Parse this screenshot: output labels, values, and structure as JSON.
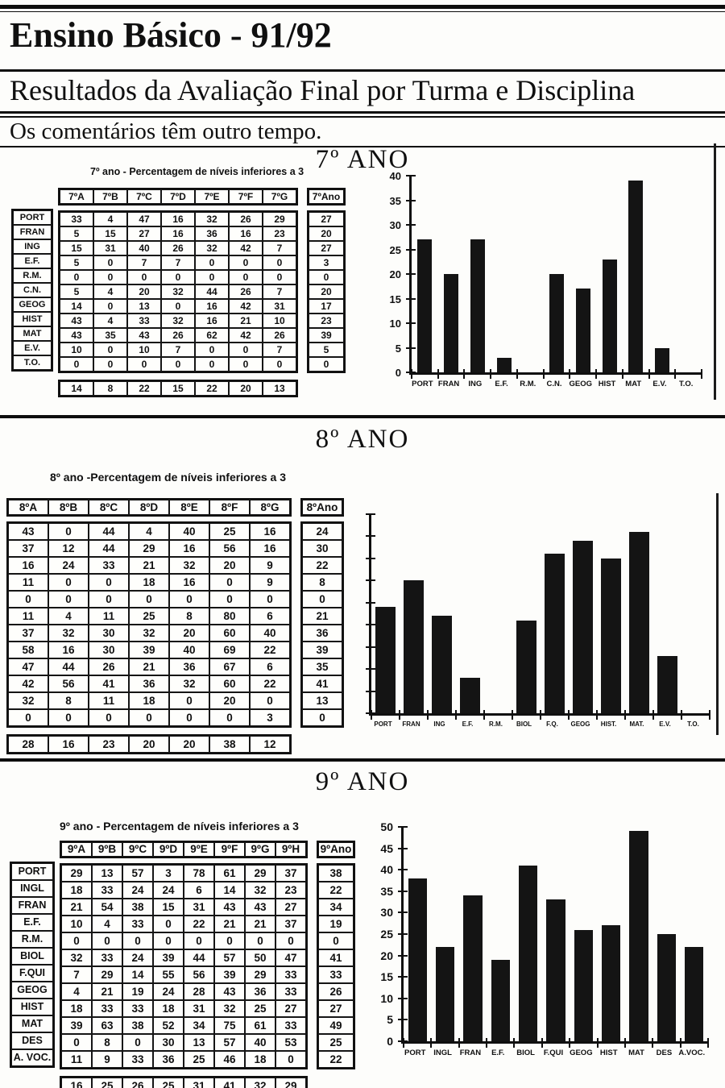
{
  "page": {
    "title": "Ensino Básico - 91/92",
    "subtitle": "Resultados da Avaliação Final por Turma e Disciplina",
    "note": "Os comentários têm outro tempo."
  },
  "sections": [
    {
      "heading": "7º ANO",
      "table_title": "7º ano - Percentagem de níveis inferiores a 3",
      "columns": [
        "7ºA",
        "7ºB",
        "7ºC",
        "7ºD",
        "7ºE",
        "7ºF",
        "7ºG"
      ],
      "avg_column": "7ºAno",
      "row_labels": [
        "PORT",
        "FRAN",
        "ING",
        "E.F.",
        "R.M.",
        "C.N.",
        "GEOG",
        "HIST",
        "MAT",
        "E.V.",
        "T.O."
      ],
      "rows": [
        [
          33,
          4,
          47,
          16,
          32,
          26,
          29
        ],
        [
          5,
          15,
          27,
          16,
          36,
          16,
          23
        ],
        [
          15,
          31,
          40,
          26,
          32,
          42,
          7
        ],
        [
          5,
          0,
          7,
          7,
          0,
          0,
          0
        ],
        [
          0,
          0,
          0,
          0,
          0,
          0,
          0
        ],
        [
          5,
          4,
          20,
          32,
          44,
          26,
          7
        ],
        [
          14,
          0,
          13,
          0,
          16,
          42,
          31
        ],
        [
          43,
          4,
          33,
          32,
          16,
          21,
          10
        ],
        [
          43,
          35,
          43,
          26,
          62,
          42,
          26
        ],
        [
          10,
          0,
          10,
          7,
          0,
          0,
          7
        ],
        [
          0,
          0,
          0,
          0,
          0,
          0,
          0
        ]
      ],
      "avg_values": [
        27,
        20,
        27,
        3,
        0,
        20,
        17,
        23,
        39,
        5,
        0
      ],
      "footer": [
        14,
        8,
        22,
        15,
        22,
        20,
        13
      ]
    },
    {
      "heading": "8º ANO",
      "table_title": "8º ano -Percentagem de níveis inferiores a 3",
      "columns": [
        "8ºA",
        "8ºB",
        "8ºC",
        "8ºD",
        "8ºE",
        "8ºF",
        "8ºG"
      ],
      "avg_column": "8ºAno",
      "row_labels": [],
      "rows": [
        [
          43,
          0,
          44,
          4,
          40,
          25,
          16
        ],
        [
          37,
          12,
          44,
          29,
          16,
          56,
          16
        ],
        [
          16,
          24,
          33,
          21,
          32,
          20,
          9
        ],
        [
          11,
          0,
          0,
          18,
          16,
          0,
          9
        ],
        [
          0,
          0,
          0,
          0,
          0,
          0,
          0
        ],
        [
          11,
          4,
          11,
          25,
          8,
          80,
          6
        ],
        [
          37,
          32,
          30,
          32,
          20,
          60,
          40
        ],
        [
          58,
          16,
          30,
          39,
          40,
          69,
          22
        ],
        [
          47,
          44,
          26,
          21,
          36,
          67,
          6
        ],
        [
          42,
          56,
          41,
          36,
          32,
          60,
          22
        ],
        [
          32,
          8,
          11,
          18,
          0,
          20,
          0
        ],
        [
          0,
          0,
          0,
          0,
          0,
          0,
          3
        ]
      ],
      "avg_values": [
        24,
        30,
        22,
        8,
        0,
        21,
        36,
        39,
        35,
        41,
        13,
        0
      ],
      "footer": [
        28,
        16,
        23,
        20,
        20,
        38,
        12
      ]
    },
    {
      "heading": "9º ANO",
      "table_title": "9º ano - Percentagem de níveis inferiores a 3",
      "columns": [
        "9ºA",
        "9ºB",
        "9ºC",
        "9ºD",
        "9ºE",
        "9ºF",
        "9ºG",
        "9ºH"
      ],
      "avg_column": "9ºAno",
      "row_labels": [
        "PORT",
        "INGL",
        "FRAN",
        "E.F.",
        "R.M.",
        "BIOL",
        "F.QUI",
        "GEOG",
        "HIST",
        "MAT",
        "DES",
        "A. VOC."
      ],
      "rows": [
        [
          29,
          13,
          57,
          3,
          78,
          61,
          29,
          37
        ],
        [
          18,
          33,
          24,
          24,
          6,
          14,
          32,
          23
        ],
        [
          21,
          54,
          38,
          15,
          31,
          43,
          43,
          27
        ],
        [
          10,
          4,
          33,
          0,
          22,
          21,
          21,
          37
        ],
        [
          0,
          0,
          0,
          0,
          0,
          0,
          0,
          0
        ],
        [
          32,
          33,
          24,
          39,
          44,
          57,
          50,
          47
        ],
        [
          7,
          29,
          14,
          55,
          56,
          39,
          29,
          33
        ],
        [
          4,
          21,
          19,
          24,
          28,
          43,
          36,
          33
        ],
        [
          18,
          33,
          33,
          18,
          31,
          32,
          25,
          27
        ],
        [
          39,
          63,
          38,
          52,
          34,
          75,
          61,
          33
        ],
        [
          0,
          8,
          0,
          30,
          13,
          57,
          40,
          53
        ],
        [
          11,
          9,
          33,
          36,
          25,
          46,
          18,
          0
        ]
      ],
      "avg_values": [
        38,
        22,
        34,
        19,
        0,
        41,
        33,
        26,
        27,
        49,
        25,
        22
      ],
      "footer": [
        16,
        25,
        26,
        25,
        31,
        41,
        32,
        29
      ]
    }
  ],
  "chart_data": [
    {
      "type": "bar",
      "title": "7º ANO",
      "categories": [
        "PORT",
        "FRAN",
        "ING",
        "E.F.",
        "R.M.",
        "C.N.",
        "GEOG",
        "HIST",
        "MAT",
        "E.V.",
        "T.O."
      ],
      "values": [
        27,
        20,
        27,
        3,
        0,
        20,
        17,
        23,
        39,
        5,
        0
      ],
      "xlabel": "",
      "ylabel": "",
      "ylim": [
        0,
        40
      ],
      "yticks": [
        0,
        5,
        10,
        15,
        20,
        25,
        30,
        35,
        40
      ],
      "ytick_labels_visible": true,
      "grid": false,
      "legend": false,
      "bar_color": "#141414"
    },
    {
      "type": "bar",
      "title": "8º ANO",
      "categories": [
        "PORT",
        "FRAN",
        "ING",
        "E.F.",
        "R.M.",
        "BIOL",
        "F.Q.",
        "GEOG",
        "HIST.",
        "MAT.",
        "E.V.",
        "T.O."
      ],
      "values": [
        24,
        30,
        22,
        8,
        0,
        21,
        36,
        39,
        35,
        41,
        13,
        0
      ],
      "xlabel": "",
      "ylabel": "",
      "ylim": [
        0,
        45
      ],
      "yticks": [
        0,
        5,
        10,
        15,
        20,
        25,
        30,
        35,
        40,
        45
      ],
      "ytick_labels_visible": false,
      "grid": false,
      "legend": false,
      "bar_color": "#141414"
    },
    {
      "type": "bar",
      "title": "9º ANO",
      "categories": [
        "PORT",
        "INGL",
        "FRAN",
        "E.F.",
        "BIOL",
        "F.QUI",
        "GEOG",
        "HIST",
        "MAT",
        "DES",
        "A.VOC."
      ],
      "values": [
        38,
        22,
        34,
        19,
        41,
        33,
        26,
        27,
        49,
        25,
        22
      ],
      "xlabel": "",
      "ylabel": "",
      "ylim": [
        0,
        50
      ],
      "yticks": [
        0,
        5,
        10,
        15,
        20,
        25,
        30,
        35,
        40,
        45,
        50
      ],
      "ytick_labels_visible": true,
      "grid": false,
      "legend": false,
      "bar_color": "#141414"
    }
  ]
}
